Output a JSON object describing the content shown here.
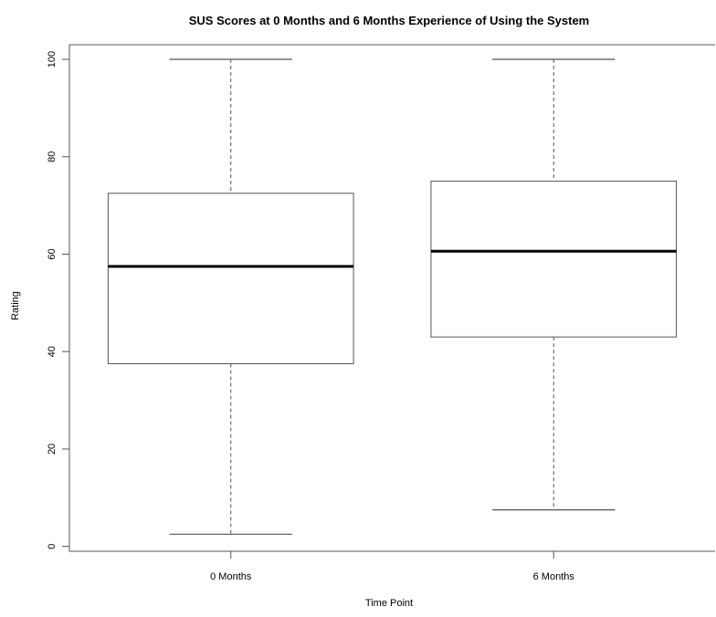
{
  "chart_data": {
    "type": "boxplot",
    "title": "SUS Scores at 0 Months and 6 Months Experience of Using the System",
    "xlabel": "Time Point",
    "ylabel": "Rating",
    "ylim": [
      -1,
      103
    ],
    "yticks": [
      0,
      20,
      40,
      60,
      80,
      100
    ],
    "categories": [
      "0 Months",
      "6 Months"
    ],
    "boxes": [
      {
        "name": "0 Months",
        "min": 2.5,
        "q1": 37.5,
        "median": 57.5,
        "q3": 72.5,
        "max": 100
      },
      {
        "name": "6 Months",
        "min": 7.5,
        "q1": 43,
        "median": 60.6,
        "q3": 75,
        "max": 100
      }
    ],
    "grid": false,
    "legend": "none"
  }
}
